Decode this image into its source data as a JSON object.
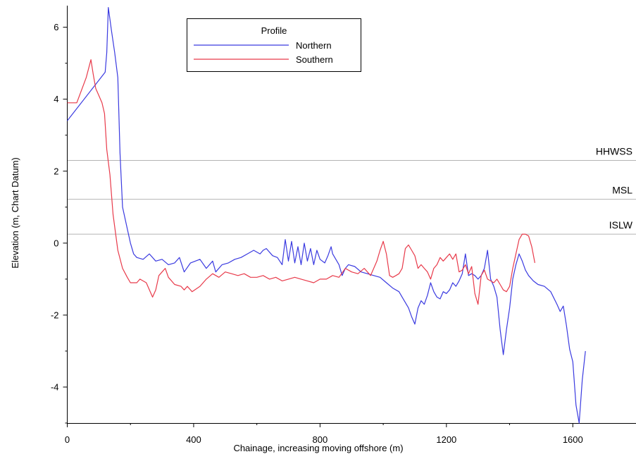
{
  "chart_data": {
    "type": "line",
    "title": "",
    "xlabel": "Chainage, increasing moving offshore (m)",
    "ylabel": "Elevation (m, Chart Datum)",
    "xlim": [
      0,
      1800
    ],
    "ylim": [
      -5,
      6.6
    ],
    "xticks": [
      0,
      400,
      800,
      1200,
      1600
    ],
    "yticks": [
      -4,
      -2,
      0,
      2,
      4,
      6
    ],
    "grid": false,
    "legend": {
      "title": "Profile",
      "placement": "top-center"
    },
    "reference_lines": [
      {
        "label": "HHWSS",
        "y": 2.3,
        "color": "#b4b4b4"
      },
      {
        "label": "MSL",
        "y": 1.22,
        "color": "#b4b4b4"
      },
      {
        "label": "ISLW",
        "y": 0.25,
        "color": "#b4b4b4"
      }
    ],
    "series": [
      {
        "name": "Northern",
        "color": "#3a3ae0",
        "points": [
          [
            0,
            3.4
          ],
          [
            120,
            4.75
          ],
          [
            125,
            5.3
          ],
          [
            130,
            6.55
          ],
          [
            140,
            5.9
          ],
          [
            150,
            5.3
          ],
          [
            160,
            4.6
          ],
          [
            167,
            2.5
          ],
          [
            175,
            1.0
          ],
          [
            190,
            0.4
          ],
          [
            200,
            0.0
          ],
          [
            210,
            -0.3
          ],
          [
            220,
            -0.4
          ],
          [
            240,
            -0.45
          ],
          [
            260,
            -0.3
          ],
          [
            280,
            -0.5
          ],
          [
            300,
            -0.45
          ],
          [
            320,
            -0.6
          ],
          [
            340,
            -0.55
          ],
          [
            355,
            -0.4
          ],
          [
            370,
            -0.8
          ],
          [
            390,
            -0.55
          ],
          [
            420,
            -0.45
          ],
          [
            440,
            -0.7
          ],
          [
            460,
            -0.5
          ],
          [
            470,
            -0.8
          ],
          [
            490,
            -0.6
          ],
          [
            510,
            -0.55
          ],
          [
            530,
            -0.45
          ],
          [
            550,
            -0.4
          ],
          [
            570,
            -0.3
          ],
          [
            590,
            -0.2
          ],
          [
            610,
            -0.3
          ],
          [
            620,
            -0.2
          ],
          [
            630,
            -0.15
          ],
          [
            650,
            -0.35
          ],
          [
            665,
            -0.4
          ],
          [
            680,
            -0.6
          ],
          [
            690,
            0.1
          ],
          [
            700,
            -0.5
          ],
          [
            710,
            0.05
          ],
          [
            720,
            -0.55
          ],
          [
            730,
            -0.1
          ],
          [
            740,
            -0.6
          ],
          [
            750,
            0.0
          ],
          [
            760,
            -0.5
          ],
          [
            770,
            -0.15
          ],
          [
            780,
            -0.6
          ],
          [
            790,
            -0.2
          ],
          [
            800,
            -0.45
          ],
          [
            815,
            -0.55
          ],
          [
            825,
            -0.35
          ],
          [
            835,
            -0.1
          ],
          [
            840,
            -0.3
          ],
          [
            860,
            -0.6
          ],
          [
            870,
            -0.9
          ],
          [
            880,
            -0.7
          ],
          [
            890,
            -0.6
          ],
          [
            910,
            -0.65
          ],
          [
            930,
            -0.8
          ],
          [
            950,
            -0.85
          ],
          [
            970,
            -0.9
          ],
          [
            990,
            -0.95
          ],
          [
            1010,
            -1.1
          ],
          [
            1030,
            -1.25
          ],
          [
            1050,
            -1.35
          ],
          [
            1060,
            -1.5
          ],
          [
            1080,
            -1.8
          ],
          [
            1090,
            -2.05
          ],
          [
            1100,
            -2.25
          ],
          [
            1110,
            -1.8
          ],
          [
            1120,
            -1.6
          ],
          [
            1130,
            -1.7
          ],
          [
            1140,
            -1.45
          ],
          [
            1150,
            -1.1
          ],
          [
            1160,
            -1.35
          ],
          [
            1170,
            -1.5
          ],
          [
            1180,
            -1.55
          ],
          [
            1190,
            -1.35
          ],
          [
            1200,
            -1.4
          ],
          [
            1210,
            -1.3
          ],
          [
            1220,
            -1.1
          ],
          [
            1230,
            -1.2
          ],
          [
            1240,
            -1.05
          ],
          [
            1250,
            -0.85
          ],
          [
            1260,
            -0.3
          ],
          [
            1270,
            -0.9
          ],
          [
            1280,
            -0.85
          ],
          [
            1290,
            -0.9
          ],
          [
            1300,
            -1.0
          ],
          [
            1310,
            -0.9
          ],
          [
            1320,
            -0.7
          ],
          [
            1330,
            -0.2
          ],
          [
            1340,
            -1.0
          ],
          [
            1350,
            -1.2
          ],
          [
            1360,
            -1.5
          ],
          [
            1370,
            -2.4
          ],
          [
            1380,
            -3.1
          ],
          [
            1390,
            -2.4
          ],
          [
            1400,
            -1.8
          ],
          [
            1410,
            -1.0
          ],
          [
            1420,
            -0.6
          ],
          [
            1430,
            -0.3
          ],
          [
            1440,
            -0.5
          ],
          [
            1450,
            -0.75
          ],
          [
            1460,
            -0.9
          ],
          [
            1475,
            -1.05
          ],
          [
            1490,
            -1.15
          ],
          [
            1510,
            -1.2
          ],
          [
            1530,
            -1.35
          ],
          [
            1550,
            -1.7
          ],
          [
            1560,
            -1.9
          ],
          [
            1570,
            -1.75
          ],
          [
            1580,
            -2.3
          ],
          [
            1590,
            -2.95
          ],
          [
            1600,
            -3.3
          ],
          [
            1610,
            -4.5
          ],
          [
            1620,
            -5.0
          ],
          [
            1630,
            -3.8
          ],
          [
            1640,
            -3.0
          ]
        ]
      },
      {
        "name": "Southern",
        "color": "#e83a4a",
        "points": [
          [
            0,
            3.9
          ],
          [
            30,
            3.9
          ],
          [
            60,
            4.6
          ],
          [
            75,
            5.1
          ],
          [
            82,
            4.7
          ],
          [
            90,
            4.3
          ],
          [
            100,
            4.1
          ],
          [
            110,
            3.9
          ],
          [
            118,
            3.6
          ],
          [
            125,
            2.6
          ],
          [
            135,
            1.9
          ],
          [
            145,
            0.8
          ],
          [
            160,
            -0.2
          ],
          [
            175,
            -0.7
          ],
          [
            190,
            -0.95
          ],
          [
            200,
            -1.1
          ],
          [
            220,
            -1.1
          ],
          [
            230,
            -1.0
          ],
          [
            250,
            -1.1
          ],
          [
            270,
            -1.5
          ],
          [
            280,
            -1.3
          ],
          [
            290,
            -0.9
          ],
          [
            300,
            -0.8
          ],
          [
            310,
            -0.7
          ],
          [
            320,
            -0.95
          ],
          [
            340,
            -1.15
          ],
          [
            360,
            -1.2
          ],
          [
            370,
            -1.3
          ],
          [
            380,
            -1.2
          ],
          [
            395,
            -1.35
          ],
          [
            420,
            -1.2
          ],
          [
            440,
            -1.0
          ],
          [
            460,
            -0.85
          ],
          [
            480,
            -0.95
          ],
          [
            500,
            -0.8
          ],
          [
            520,
            -0.85
          ],
          [
            540,
            -0.9
          ],
          [
            560,
            -0.85
          ],
          [
            580,
            -0.95
          ],
          [
            600,
            -0.95
          ],
          [
            620,
            -0.9
          ],
          [
            640,
            -1.0
          ],
          [
            660,
            -0.95
          ],
          [
            680,
            -1.05
          ],
          [
            700,
            -1.0
          ],
          [
            720,
            -0.95
          ],
          [
            740,
            -1.0
          ],
          [
            760,
            -1.05
          ],
          [
            780,
            -1.1
          ],
          [
            800,
            -1.0
          ],
          [
            820,
            -1.0
          ],
          [
            840,
            -0.9
          ],
          [
            860,
            -0.95
          ],
          [
            880,
            -0.7
          ],
          [
            900,
            -0.8
          ],
          [
            920,
            -0.85
          ],
          [
            940,
            -0.7
          ],
          [
            960,
            -0.9
          ],
          [
            980,
            -0.5
          ],
          [
            990,
            -0.2
          ],
          [
            1000,
            0.05
          ],
          [
            1010,
            -0.3
          ],
          [
            1020,
            -0.9
          ],
          [
            1030,
            -0.95
          ],
          [
            1040,
            -0.9
          ],
          [
            1050,
            -0.85
          ],
          [
            1060,
            -0.7
          ],
          [
            1070,
            -0.15
          ],
          [
            1080,
            -0.05
          ],
          [
            1090,
            -0.2
          ],
          [
            1100,
            -0.35
          ],
          [
            1110,
            -0.7
          ],
          [
            1120,
            -0.6
          ],
          [
            1130,
            -0.7
          ],
          [
            1140,
            -0.8
          ],
          [
            1150,
            -1.0
          ],
          [
            1160,
            -0.7
          ],
          [
            1170,
            -0.6
          ],
          [
            1180,
            -0.4
          ],
          [
            1190,
            -0.5
          ],
          [
            1200,
            -0.4
          ],
          [
            1210,
            -0.3
          ],
          [
            1220,
            -0.45
          ],
          [
            1230,
            -0.3
          ],
          [
            1240,
            -0.8
          ],
          [
            1250,
            -0.75
          ],
          [
            1260,
            -0.6
          ],
          [
            1270,
            -0.85
          ],
          [
            1280,
            -0.65
          ],
          [
            1290,
            -1.4
          ],
          [
            1300,
            -1.7
          ],
          [
            1310,
            -0.9
          ],
          [
            1320,
            -0.75
          ],
          [
            1330,
            -1.0
          ],
          [
            1340,
            -1.05
          ],
          [
            1350,
            -1.1
          ],
          [
            1360,
            -1.0
          ],
          [
            1370,
            -1.15
          ],
          [
            1380,
            -1.3
          ],
          [
            1390,
            -1.35
          ],
          [
            1400,
            -1.2
          ],
          [
            1410,
            -0.7
          ],
          [
            1420,
            -0.3
          ],
          [
            1430,
            0.1
          ],
          [
            1440,
            0.25
          ],
          [
            1450,
            0.25
          ],
          [
            1460,
            0.2
          ],
          [
            1470,
            -0.1
          ],
          [
            1480,
            -0.55
          ]
        ]
      }
    ]
  }
}
